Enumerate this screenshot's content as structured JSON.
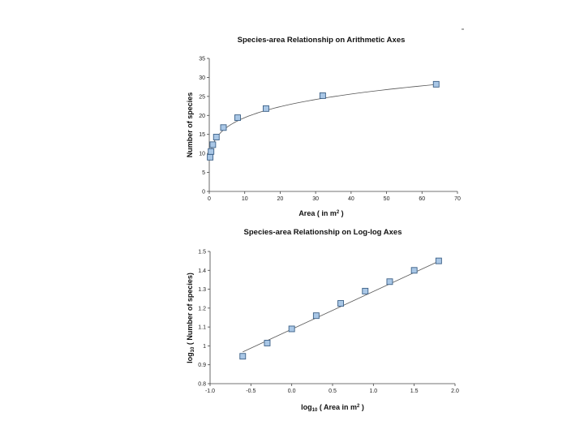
{
  "chart_data": [
    {
      "type": "scatter",
      "title": "Species-area Relationship on Arithmetic Axes",
      "xlabel": "Area ( in m",
      "xlabel_sup": "2",
      "xlabel_suffix": " )",
      "ylabel": "Number of species",
      "xlim": [
        0,
        70
      ],
      "ylim": [
        0,
        35
      ],
      "xticks": [
        0,
        10,
        20,
        30,
        40,
        50,
        60,
        70
      ],
      "yticks": [
        0,
        5,
        10,
        15,
        20,
        25,
        30,
        35
      ],
      "grid": false,
      "legend": "none",
      "series": [
        {
          "x": [
            0.25,
            0.5,
            1,
            2,
            4,
            8,
            16,
            32,
            64
          ],
          "y": [
            9,
            10.5,
            12.3,
            14.3,
            16.8,
            19.4,
            21.8,
            25.2,
            28.2
          ]
        }
      ],
      "fit": {
        "type": "power",
        "a": 12.25,
        "b": 0.2
      }
    },
    {
      "type": "scatter",
      "title": "Species-area Relationship on Log-log Axes",
      "xlabel": "log",
      "xlabel_sub": "10",
      "xlabel_suffix": " ( Area in m",
      "xlabel_sup": "2",
      "xlabel_end": " )",
      "ylabel": "log",
      "ylabel_sub": "10",
      "ylabel_suffix": " ( Number of species)",
      "xlim": [
        -1.0,
        2.0
      ],
      "ylim": [
        0.8,
        1.5
      ],
      "xticks": [
        "-1.0",
        "-0.5",
        "0.0",
        "0.5",
        "1.0",
        "1.5",
        "2.0"
      ],
      "yticks": [
        "0.8",
        "0.9",
        "1",
        "1.1",
        "1.2",
        "1.3",
        "1.4",
        "1.5"
      ],
      "grid": false,
      "legend": "none",
      "series": [
        {
          "x": [
            -0.6,
            -0.3,
            0.0,
            0.3,
            0.6,
            0.9,
            1.2,
            1.5,
            1.8
          ],
          "y": [
            0.945,
            1.015,
            1.09,
            1.16,
            1.225,
            1.29,
            1.34,
            1.4,
            1.45
          ]
        }
      ],
      "fit": {
        "type": "linear",
        "intercept": 1.088,
        "slope": 0.2
      }
    }
  ]
}
